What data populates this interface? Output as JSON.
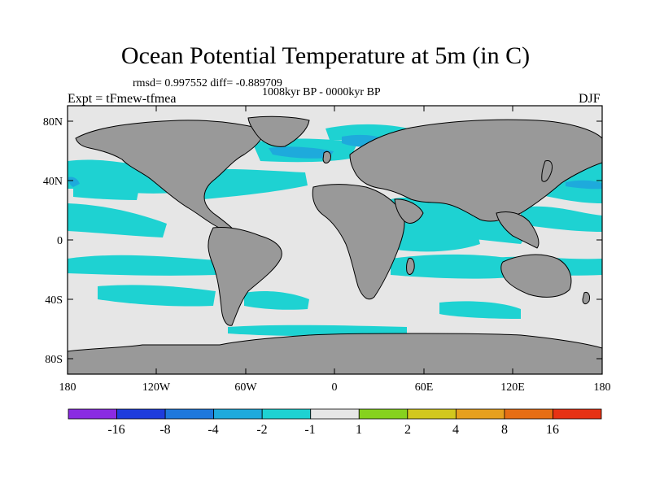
{
  "title": "Ocean Potential Temperature at 5m (in C)",
  "stats_text": "rmsd= 0.997552 diff= -0.889709",
  "period_text": "1008kyr BP - 0000kyr BP",
  "experiment_text": "Expt = tFmew-tfmea",
  "season": "DJF",
  "y_ticks": [
    "80N",
    "40N",
    "0",
    "40S",
    "80S"
  ],
  "x_ticks": [
    "180",
    "120W",
    "60W",
    "0",
    "60E",
    "120E",
    "180"
  ],
  "colorbar": {
    "colors": [
      "#8a2be2",
      "#1e3cdc",
      "#1e78dc",
      "#1eaadc",
      "#1ed2d2",
      "#e6e6e6",
      "#86d21e",
      "#d2c81e",
      "#e6a01e",
      "#e66e14",
      "#e63214"
    ],
    "labels": [
      "-16",
      "-8",
      "-4",
      "-2",
      "-1",
      "1",
      "2",
      "4",
      "8",
      "16"
    ]
  },
  "colors": {
    "land": "#999999",
    "neutral": "#e6e6e6",
    "cool": "#1ed2d2",
    "cooler": "#1eaadc"
  }
}
